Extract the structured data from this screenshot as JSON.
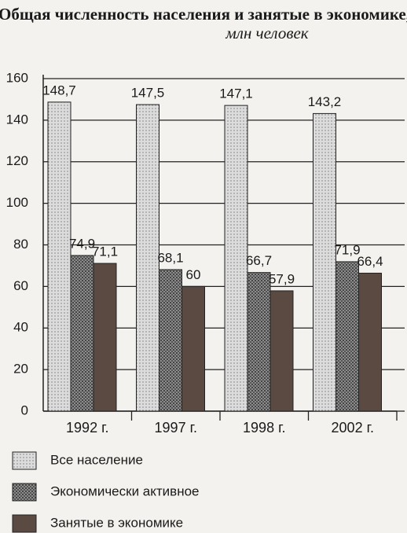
{
  "chart_data": {
    "type": "bar",
    "title": "Общая численность населения и занятые в экономике,",
    "subtitle": "млн человек",
    "categories": [
      "1992 г.",
      "1997 г.",
      "1998 г.",
      "2002 г."
    ],
    "series": [
      {
        "name": "Все население",
        "color": "#dcdcdc",
        "values": [
          148.7,
          147.5,
          147.1,
          143.2
        ],
        "value_labels": [
          "148,7",
          "147,5",
          "147,1",
          "143,2"
        ]
      },
      {
        "name": "Экономически активное",
        "color": "#8c8c8c",
        "values": [
          74.9,
          68.1,
          66.7,
          71.9
        ],
        "value_labels": [
          "74,9",
          "68,1",
          "66,7",
          "71,9"
        ]
      },
      {
        "name": "Занятые в экономике",
        "color": "#5a4a42",
        "values": [
          71.1,
          60,
          57.9,
          66.4
        ],
        "value_labels": [
          "71,1",
          "60",
          "57,9",
          "66,4"
        ]
      }
    ],
    "ylim": [
      0,
      160
    ],
    "yticks": [
      0,
      20,
      40,
      60,
      80,
      100,
      120,
      140,
      160
    ],
    "grid": true
  }
}
